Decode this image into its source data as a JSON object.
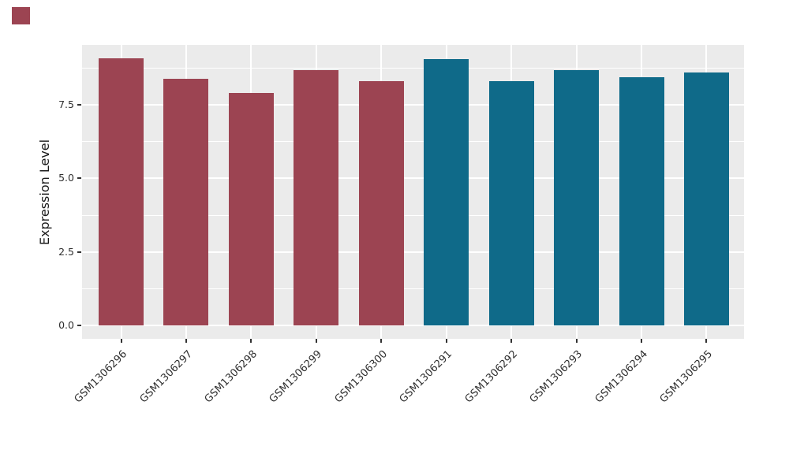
{
  "figure": {
    "background_color": "#FFFFFF",
    "panel_background_color": "#EBEBEB",
    "gridline_color": "#FFFFFF",
    "marker_square_color": "#9C4452"
  },
  "chart_data": {
    "type": "bar",
    "title": "",
    "xlabel": "",
    "ylabel": "Expression Level",
    "ylim": [
      0,
      9.5
    ],
    "grid": true,
    "legend_position": "none",
    "yticks": [
      0.0,
      2.5,
      5.0,
      7.5
    ],
    "ytick_labels": [
      "0.0",
      "2.5",
      "5.0",
      "7.5"
    ],
    "minor_yticks": [
      1.25,
      3.75,
      6.25,
      8.75
    ],
    "categories": [
      "GSM1306296",
      "GSM1306297",
      "GSM1306298",
      "GSM1306299",
      "GSM1306300",
      "GSM1306291",
      "GSM1306292",
      "GSM1306293",
      "GSM1306294",
      "GSM1306295"
    ],
    "values": [
      9.06,
      8.37,
      7.89,
      8.66,
      8.29,
      9.04,
      8.29,
      8.66,
      8.42,
      8.58
    ],
    "bar_colors": [
      "#9C4452",
      "#9C4452",
      "#9C4452",
      "#9C4452",
      "#9C4452",
      "#0F6A89",
      "#0F6A89",
      "#0F6A89",
      "#0F6A89",
      "#0F6A89"
    ],
    "series_colors": {
      "group1_red": "#9C4452",
      "group2_teal": "#0F6A89"
    }
  }
}
